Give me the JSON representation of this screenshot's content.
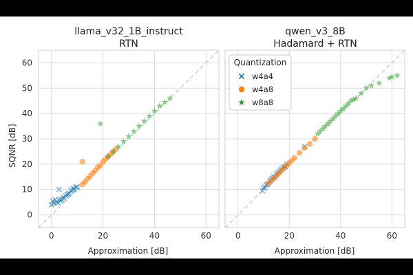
{
  "chart_data": [
    {
      "type": "scatter",
      "title": "llama_v32_1B_instruct",
      "subtitle": "RTN",
      "xlabel": "Approximation [dB]",
      "ylabel": "SQNR [dB]",
      "xlim": [
        -5,
        65
      ],
      "ylim": [
        -5,
        65
      ],
      "x_ticks": [
        "0",
        "20",
        "40",
        "60"
      ],
      "y_ticks": [
        "0",
        "10",
        "20",
        "30",
        "40",
        "50",
        "60"
      ],
      "grid": true,
      "reference_line": "y = x (dashed)",
      "series": [
        {
          "name": "w4a4",
          "marker": "x",
          "color": "#1f77b4",
          "points": [
            [
              0.0,
              4.0
            ],
            [
              0.5,
              5.5
            ],
            [
              1.0,
              4.5
            ],
            [
              1.5,
              6.0
            ],
            [
              2.0,
              5.0
            ],
            [
              2.5,
              4.8
            ],
            [
              3.0,
              6.0
            ],
            [
              3.0,
              10.0
            ],
            [
              3.5,
              5.5
            ],
            [
              4.0,
              6.0
            ],
            [
              4.5,
              7.0
            ],
            [
              5.0,
              6.5
            ],
            [
              5.5,
              7.5
            ],
            [
              6.0,
              8.0
            ],
            [
              6.5,
              8.2
            ],
            [
              7.0,
              8.5
            ],
            [
              7.5,
              9.5
            ],
            [
              8.0,
              10.0
            ],
            [
              8.5,
              10.5
            ],
            [
              9.0,
              10.0
            ],
            [
              9.5,
              11.0
            ],
            [
              10.0,
              11.0
            ]
          ]
        },
        {
          "name": "w4a8",
          "marker": "circle",
          "color": "#ff7f0e",
          "points": [
            [
              12.0,
              21.0
            ],
            [
              12.0,
              12.0
            ],
            [
              13.0,
              13.0
            ],
            [
              14.0,
              14.2
            ],
            [
              15.0,
              15.3
            ],
            [
              16.0,
              16.5
            ],
            [
              17.0,
              17.5
            ],
            [
              18.0,
              18.8
            ],
            [
              19.0,
              19.5
            ],
            [
              20.0,
              21.0
            ],
            [
              21.0,
              22.0
            ],
            [
              22.0,
              23.0
            ],
            [
              23.0,
              24.0
            ],
            [
              24.0,
              25.0
            ],
            [
              25.0,
              26.0
            ]
          ]
        },
        {
          "name": "w8a8",
          "marker": "star",
          "color": "#2ca02c",
          "points": [
            [
              19.0,
              36.0
            ],
            [
              22.0,
              23.0
            ],
            [
              24.0,
              25.0
            ],
            [
              26.0,
              27.0
            ],
            [
              28.0,
              29.0
            ],
            [
              30.0,
              31.0
            ],
            [
              32.0,
              33.0
            ],
            [
              34.0,
              35.0
            ],
            [
              36.0,
              37.0
            ],
            [
              38.0,
              39.0
            ],
            [
              40.0,
              41.0
            ],
            [
              42.0,
              43.0
            ],
            [
              44.0,
              44.5
            ],
            [
              46.0,
              46.0
            ]
          ]
        }
      ]
    },
    {
      "type": "scatter",
      "title": "qwen_v3_8B",
      "subtitle": "Hadamard + RTN",
      "xlabel": "Approximation [dB]",
      "ylabel": "",
      "xlim": [
        -5,
        65
      ],
      "ylim": [
        -5,
        65
      ],
      "x_ticks": [
        "0",
        "20",
        "40",
        "60"
      ],
      "grid": true,
      "reference_line": "y = x (dashed)",
      "legend": {
        "title": "Quantization",
        "position": "upper-left",
        "entries": [
          "w4a4",
          "w4a8",
          "w8a8"
        ]
      },
      "series": [
        {
          "name": "w4a4",
          "marker": "x",
          "color": "#1f77b4",
          "points": [
            [
              9.5,
              9.5
            ],
            [
              10.0,
              10.5
            ],
            [
              10.5,
              11.0
            ],
            [
              11.0,
              11.8
            ],
            [
              11.5,
              12.0
            ],
            [
              12.0,
              12.5
            ],
            [
              12.5,
              13.5
            ],
            [
              13.0,
              14.0
            ],
            [
              13.5,
              14.5
            ],
            [
              14.0,
              15.0
            ],
            [
              14.5,
              15.0
            ],
            [
              15.0,
              16.0
            ],
            [
              15.5,
              16.5
            ],
            [
              16.0,
              17.0
            ],
            [
              16.5,
              17.5
            ],
            [
              17.0,
              18.0
            ],
            [
              17.5,
              18.5
            ],
            [
              18.0,
              19.0
            ],
            [
              18.5,
              19.0
            ],
            [
              19.0,
              20.0
            ],
            [
              26.0,
              27.0
            ]
          ]
        },
        {
          "name": "w4a8",
          "marker": "circle",
          "color": "#ff7f0e",
          "points": [
            [
              12.0,
              12.5
            ],
            [
              13.0,
              13.5
            ],
            [
              14.0,
              14.5
            ],
            [
              15.0,
              15.5
            ],
            [
              16.0,
              16.5
            ],
            [
              17.0,
              17.5
            ],
            [
              18.0,
              18.5
            ],
            [
              19.0,
              19.5
            ],
            [
              20.0,
              20.5
            ],
            [
              21.0,
              21.5
            ],
            [
              22.0,
              22.5
            ],
            [
              24.0,
              24.5
            ],
            [
              26.0,
              26.5
            ],
            [
              28.0,
              28.0
            ],
            [
              30.0,
              30.0
            ]
          ]
        },
        {
          "name": "w8a8",
          "marker": "star",
          "color": "#2ca02c",
          "points": [
            [
              31.0,
              32.0
            ],
            [
              32.0,
              33.0
            ],
            [
              33.0,
              34.0
            ],
            [
              34.0,
              35.0
            ],
            [
              35.0,
              36.0
            ],
            [
              36.0,
              37.0
            ],
            [
              37.0,
              38.0
            ],
            [
              38.0,
              39.0
            ],
            [
              39.0,
              40.0
            ],
            [
              40.0,
              41.0
            ],
            [
              41.0,
              42.0
            ],
            [
              42.0,
              43.0
            ],
            [
              43.0,
              44.0
            ],
            [
              44.0,
              45.0
            ],
            [
              45.0,
              45.5
            ],
            [
              46.0,
              46.0
            ],
            [
              48.0,
              48.0
            ],
            [
              50.0,
              50.0
            ],
            [
              52.0,
              51.0
            ],
            [
              55.0,
              52.0
            ],
            [
              59.0,
              54.0
            ],
            [
              60.0,
              54.5
            ],
            [
              62.0,
              55.0
            ]
          ]
        }
      ]
    }
  ]
}
